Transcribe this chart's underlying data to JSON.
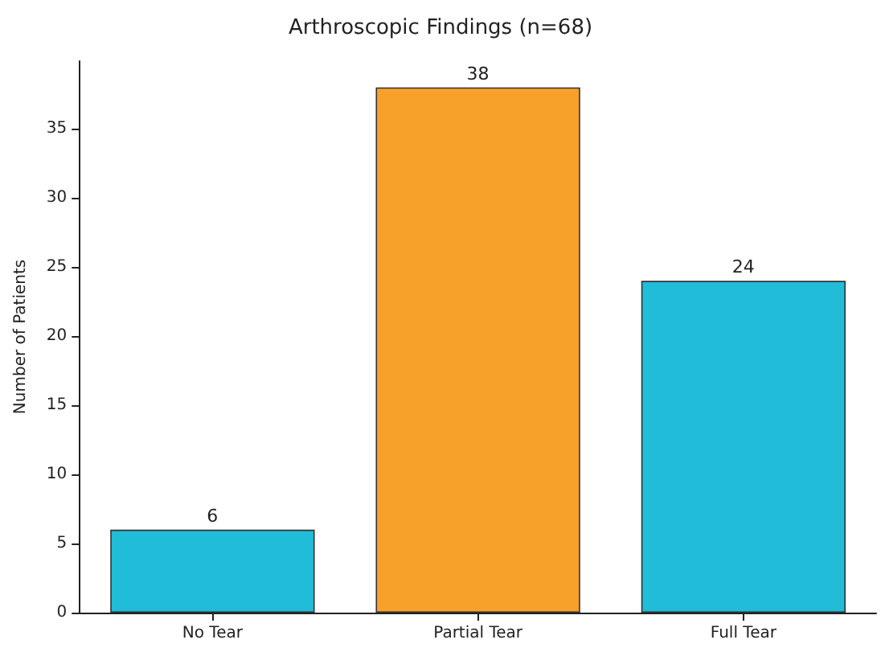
{
  "chart_data": {
    "type": "bar",
    "title": "Arthroscopic Findings (n=68)",
    "ylabel": "Number of Patients",
    "categories": [
      "No Tear",
      "Partial Tear",
      "Full Tear"
    ],
    "values": [
      6,
      38,
      24
    ],
    "colors": [
      "#21bcd8",
      "#f7a12a",
      "#21bcd8"
    ],
    "ylim": [
      0,
      39.9
    ],
    "yticks": [
      0,
      5,
      10,
      15,
      20,
      25,
      30,
      35
    ],
    "grid": false,
    "data_labels": true
  }
}
